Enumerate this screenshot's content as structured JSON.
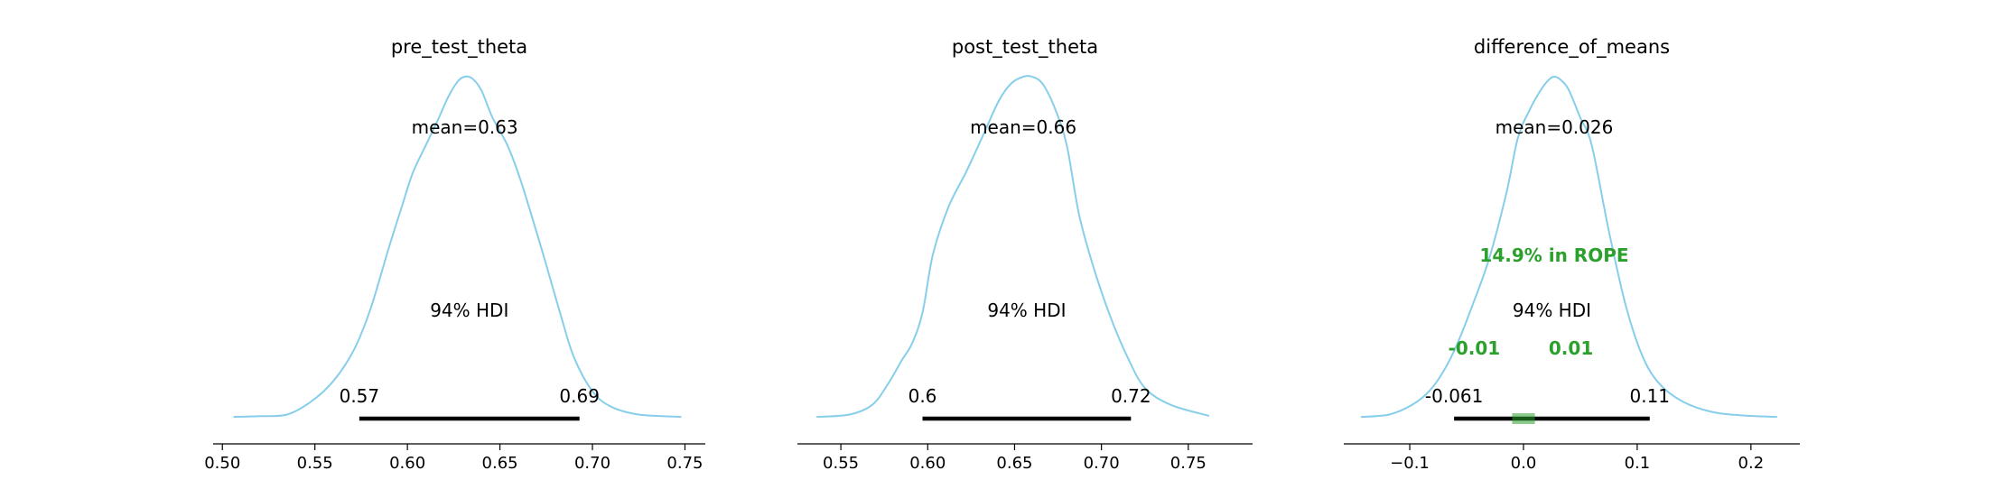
{
  "chart_data": [
    {
      "type": "line",
      "title": "pre_test_theta",
      "curve_color": "#87ceeb",
      "mean_label": "mean=0.63",
      "hdi_label": "94% HDI",
      "hdi_low_label": "0.57",
      "hdi_high_label": "0.69",
      "hdi": [
        0.574,
        0.693
      ],
      "xlim": [
        0.495,
        0.761
      ],
      "ylim": [
        0,
        1
      ],
      "xticks": [
        0.5,
        0.55,
        0.6,
        0.65,
        0.7,
        0.75
      ],
      "xtick_labels": [
        "0.50",
        "0.55",
        "0.60",
        "0.65",
        "0.70",
        "0.75"
      ],
      "x": [
        0.506,
        0.52,
        0.535,
        0.548,
        0.56,
        0.571,
        0.58,
        0.59,
        0.597,
        0.603,
        0.61,
        0.617,
        0.622,
        0.627,
        0.631,
        0.635,
        0.64,
        0.646,
        0.654,
        0.661,
        0.669,
        0.675,
        0.683,
        0.69,
        0.7,
        0.71,
        0.725,
        0.748
      ],
      "density": [
        0.005,
        0.007,
        0.012,
        0.05,
        0.11,
        0.2,
        0.32,
        0.5,
        0.62,
        0.72,
        0.8,
        0.88,
        0.94,
        0.985,
        1.0,
        0.995,
        0.96,
        0.88,
        0.8,
        0.7,
        0.56,
        0.45,
        0.3,
        0.18,
        0.08,
        0.035,
        0.012,
        0.005
      ]
    },
    {
      "type": "line",
      "title": "post_test_theta",
      "curve_color": "#87ceeb",
      "mean_label": "mean=0.66",
      "hdi_label": "94% HDI",
      "hdi_low_label": "0.6",
      "hdi_high_label": "0.72",
      "hdi": [
        0.597,
        0.717
      ],
      "xlim": [
        0.525,
        0.787
      ],
      "ylim": [
        0,
        1
      ],
      "xticks": [
        0.55,
        0.6,
        0.65,
        0.7,
        0.75
      ],
      "xtick_labels": [
        "0.55",
        "0.60",
        "0.65",
        "0.70",
        "0.75"
      ],
      "x": [
        0.536,
        0.555,
        0.568,
        0.577,
        0.585,
        0.591,
        0.597,
        0.603,
        0.612,
        0.622,
        0.632,
        0.641,
        0.648,
        0.655,
        0.66,
        0.666,
        0.673,
        0.68,
        0.687,
        0.695,
        0.705,
        0.715,
        0.725,
        0.74,
        0.762
      ],
      "density": [
        0.005,
        0.012,
        0.04,
        0.1,
        0.17,
        0.22,
        0.31,
        0.48,
        0.62,
        0.72,
        0.83,
        0.93,
        0.98,
        1.0,
        1.0,
        0.98,
        0.91,
        0.8,
        0.6,
        0.45,
        0.3,
        0.18,
        0.09,
        0.04,
        0.008
      ]
    },
    {
      "type": "line",
      "title": "difference_of_means",
      "curve_color": "#87ceeb",
      "mean_label": "mean=0.026",
      "hdi_label": "94% HDI",
      "hdi_low_label": "-0.061",
      "hdi_high_label": "0.11",
      "hdi": [
        -0.061,
        0.111
      ],
      "rope": [
        -0.01,
        0.01
      ],
      "rope_label": "14.9% in ROPE",
      "rope_low_label": "-0.01",
      "rope_high_label": "0.01",
      "rope_color": "#2ca02c",
      "xlim": [
        -0.158,
        0.243
      ],
      "ylim": [
        0,
        1
      ],
      "xticks": [
        -0.1,
        0.0,
        0.1,
        0.2
      ],
      "xtick_labels": [
        "−0.1",
        "0.0",
        "0.1",
        "0.2"
      ],
      "x": [
        -0.143,
        -0.118,
        -0.098,
        -0.083,
        -0.07,
        -0.058,
        -0.045,
        -0.03,
        -0.015,
        -0.005,
        0.005,
        0.015,
        0.022,
        0.027,
        0.033,
        0.04,
        0.05,
        0.06,
        0.075,
        0.09,
        0.105,
        0.12,
        0.14,
        0.165,
        0.19,
        0.223
      ],
      "density": [
        0.005,
        0.012,
        0.04,
        0.08,
        0.14,
        0.22,
        0.33,
        0.47,
        0.66,
        0.82,
        0.9,
        0.96,
        0.99,
        1.0,
        0.99,
        0.96,
        0.88,
        0.8,
        0.55,
        0.33,
        0.18,
        0.1,
        0.05,
        0.02,
        0.01,
        0.005
      ]
    }
  ]
}
